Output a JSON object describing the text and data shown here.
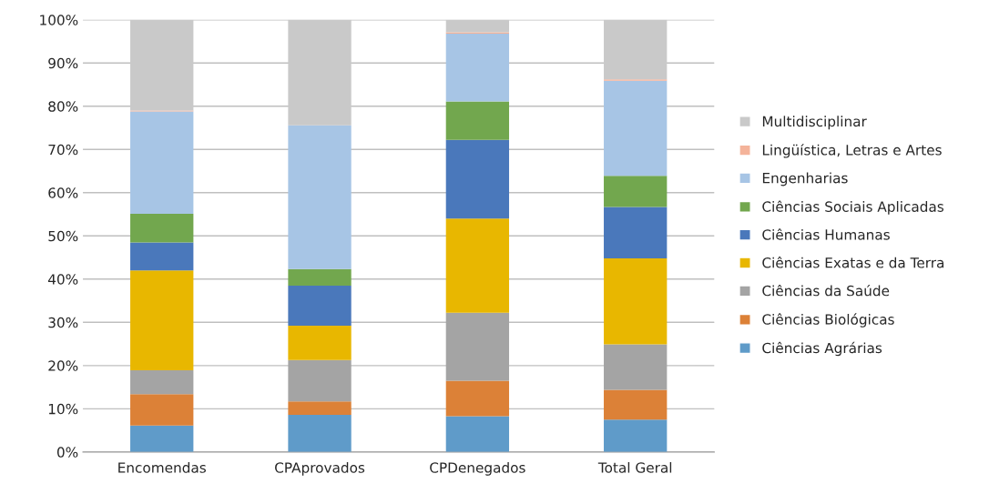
{
  "chart_data": {
    "type": "bar",
    "stacked": true,
    "categories": [
      "Encomendas",
      "CPAprovados",
      "CPDenegados",
      "Total Geral"
    ],
    "series": [
      {
        "name": "Ciências Agrárias",
        "color": "#5f9bc9",
        "values": [
          6.1,
          8.6,
          8.3,
          7.5
        ]
      },
      {
        "name": "Ciências Biológicas",
        "color": "#dc8137",
        "values": [
          7.3,
          3.1,
          8.2,
          6.9
        ]
      },
      {
        "name": "Ciências da Saúde",
        "color": "#a4a4a4",
        "values": [
          5.5,
          9.6,
          15.7,
          10.5
        ]
      },
      {
        "name": "Ciências Exatas e da Terra",
        "color": "#e8b700",
        "values": [
          23.1,
          7.9,
          21.8,
          19.9
        ]
      },
      {
        "name": "Ciências Humanas",
        "color": "#4a78bb",
        "values": [
          6.5,
          9.3,
          18.2,
          11.9
        ]
      },
      {
        "name": "Ciências Sociais Aplicadas",
        "color": "#72a74e",
        "values": [
          6.6,
          3.8,
          8.9,
          7.2
        ]
      },
      {
        "name": "Engenharias",
        "color": "#a7c5e5",
        "values": [
          23.7,
          33.3,
          15.7,
          22.0
        ]
      },
      {
        "name": "Lingüística, Letras e Artes",
        "color": "#f4b39a",
        "values": [
          0.2,
          0,
          0.3,
          0.3
        ]
      },
      {
        "name": "Multidisciplinar",
        "color": "#c9c9c9",
        "values": [
          21.0,
          24.4,
          2.9,
          13.8
        ]
      }
    ],
    "ylim": [
      0,
      100
    ],
    "yticks": [
      {
        "value": 0,
        "label": "0%"
      },
      {
        "value": 10,
        "label": "10%"
      },
      {
        "value": 20,
        "label": "20%"
      },
      {
        "value": 30,
        "label": "30%"
      },
      {
        "value": 40,
        "label": "40%"
      },
      {
        "value": 50,
        "label": "50%"
      },
      {
        "value": 60,
        "label": "60%"
      },
      {
        "value": 70,
        "label": "70%"
      },
      {
        "value": 80,
        "label": "80%"
      },
      {
        "value": 90,
        "label": "90%"
      },
      {
        "value": 100,
        "label": "100%"
      }
    ],
    "grid": "y",
    "legend": "right"
  }
}
